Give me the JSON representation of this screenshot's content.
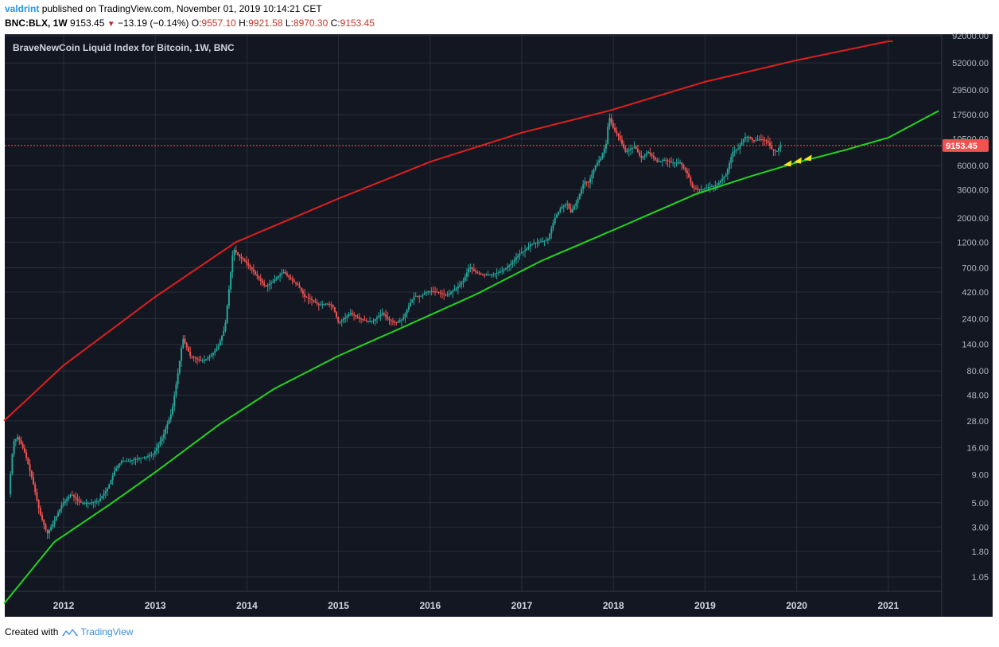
{
  "header": {
    "user": "valdrint",
    "published_text": "published on TradingView.com, November 01, 2019 10:14:21 CET",
    "symbol": "BNC:BLX, 1W",
    "last_price": "9153.45",
    "change": "−13.19 (−0.14%)",
    "o_label": "O:",
    "o_value": "9557.10",
    "h_label": "H:",
    "h_value": "9921.58",
    "l_label": "L:",
    "l_value": "8970.30",
    "c_label": "C:",
    "c_value": "9153.45"
  },
  "footer": {
    "created_with": "Created with",
    "brand": "TradingView"
  },
  "colors": {
    "background": "#131722",
    "grid": "#2a2e39",
    "up_candle": "#26a69a",
    "down_candle": "#ef5350",
    "upper_band": "#e01e1e",
    "lower_band": "#22d41e",
    "price_tag": "#ef5350",
    "arrows": "#f5e51b"
  },
  "chart_data": {
    "type": "line",
    "chart_title": "BraveNewCoin Liquid Index for Bitcoin, 1W, BNC",
    "y_scale": "log",
    "x_ticks": [
      "2012",
      "2013",
      "2014",
      "2015",
      "2016",
      "2017",
      "2018",
      "2019",
      "2020",
      "2021"
    ],
    "y_ticks": [
      {
        "label": "92000.00",
        "value": 92000
      },
      {
        "label": "52000.00",
        "value": 52000
      },
      {
        "label": "29500.00",
        "value": 29500
      },
      {
        "label": "17500.00",
        "value": 17500
      },
      {
        "label": "10500.00",
        "value": 10500
      },
      {
        "label": "6000.00",
        "value": 6000
      },
      {
        "label": "3600.00",
        "value": 3600
      },
      {
        "label": "2000.00",
        "value": 2000
      },
      {
        "label": "1200.00",
        "value": 1200
      },
      {
        "label": "700.00",
        "value": 700
      },
      {
        "label": "420.00",
        "value": 420
      },
      {
        "label": "240.00",
        "value": 240
      },
      {
        "label": "140.00",
        "value": 140
      },
      {
        "label": "80.00",
        "value": 80
      },
      {
        "label": "48.00",
        "value": 48
      },
      {
        "label": "28.00",
        "value": 28
      },
      {
        "label": "16.00",
        "value": 16
      },
      {
        "label": "9.00",
        "value": 9
      },
      {
        "label": "5.00",
        "value": 5
      },
      {
        "label": "3.00",
        "value": 3
      },
      {
        "label": "1.80",
        "value": 1.8
      },
      {
        "label": "1.05",
        "value": 1.05
      }
    ],
    "current_price_label": "9153.45",
    "current_price": 9153.45,
    "price_series": {
      "name": "",
      "x": [
        2011.42,
        2011.47,
        2011.52,
        2011.6,
        2011.68,
        2011.76,
        2011.84,
        2011.9,
        2012.0,
        2012.1,
        2012.2,
        2012.3,
        2012.4,
        2012.5,
        2012.58,
        2012.65,
        2012.72,
        2012.8,
        2012.9,
        2013.0,
        2013.1,
        2013.2,
        2013.27,
        2013.32,
        2013.4,
        2013.5,
        2013.55,
        2013.6,
        2013.7,
        2013.78,
        2013.83,
        2013.87,
        2013.93,
        2014.0,
        2014.06,
        2014.15,
        2014.22,
        2014.3,
        2014.37,
        2014.42,
        2014.5,
        2014.58,
        2014.65,
        2014.72,
        2014.8,
        2014.88,
        2014.95,
        2015.02,
        2015.08,
        2015.15,
        2015.25,
        2015.32,
        2015.4,
        2015.5,
        2015.58,
        2015.65,
        2015.72,
        2015.8,
        2015.85,
        2015.9,
        2016.0,
        2016.1,
        2016.2,
        2016.3,
        2016.38,
        2016.45,
        2016.5,
        2016.55,
        2016.6,
        2016.7,
        2016.8,
        2016.9,
        2017.0,
        2017.05,
        2017.12,
        2017.2,
        2017.3,
        2017.38,
        2017.45,
        2017.52,
        2017.55,
        2017.62,
        2017.7,
        2017.75,
        2017.82,
        2017.88,
        2017.94,
        2017.97,
        2018.02,
        2018.08,
        2018.15,
        2018.25,
        2018.32,
        2018.4,
        2018.5,
        2018.58,
        2018.65,
        2018.75,
        2018.83,
        2018.88,
        2018.96,
        2019.05,
        2019.15,
        2019.25,
        2019.32,
        2019.38,
        2019.45,
        2019.5,
        2019.55,
        2019.62,
        2019.7,
        2019.75,
        2019.8,
        2019.84
      ],
      "values": [
        6,
        18,
        20,
        14,
        8,
        4,
        2.6,
        3.2,
        4.8,
        6,
        5,
        5,
        5.2,
        6.8,
        10,
        12,
        12,
        12.5,
        13,
        14,
        20,
        34,
        80,
        160,
        110,
        100,
        100,
        105,
        130,
        200,
        500,
        1050,
        900,
        800,
        700,
        560,
        470,
        520,
        600,
        640,
        550,
        480,
        380,
        360,
        320,
        330,
        320,
        220,
        240,
        270,
        240,
        230,
        230,
        270,
        230,
        220,
        240,
        330,
        390,
        380,
        430,
        420,
        390,
        450,
        530,
        720,
        650,
        620,
        600,
        610,
        650,
        760,
        950,
        1000,
        1150,
        1200,
        1250,
        2000,
        2500,
        2700,
        2200,
        2800,
        4300,
        4200,
        6000,
        7000,
        9500,
        17000,
        13000,
        11000,
        8000,
        9000,
        7000,
        8000,
        6500,
        6800,
        6400,
        6400,
        5000,
        3800,
        3600,
        3800,
        4000,
        5000,
        8000,
        8500,
        11000,
        11000,
        10000,
        10500,
        10000,
        8400,
        8000,
        9153
      ]
    },
    "upper_band": {
      "name": "",
      "x": [
        2011.35,
        2012.0,
        2013.0,
        2013.88,
        2015.0,
        2016.0,
        2017.0,
        2017.95,
        2019.0,
        2020.0,
        2021.0
      ],
      "values": [
        28,
        90,
        380,
        1200,
        3000,
        6500,
        12000,
        19000,
        35000,
        55000,
        82000
      ]
    },
    "lower_band": {
      "name": "",
      "x": [
        2011.35,
        2011.9,
        2012.5,
        2013.0,
        2013.7,
        2014.3,
        2015.0,
        2015.7,
        2016.5,
        2017.2,
        2018.0,
        2018.9,
        2019.5,
        2020.0,
        2020.5,
        2021.0,
        2021.55
      ],
      "values": [
        0.6,
        2.2,
        4.8,
        9.5,
        26,
        55,
        110,
        200,
        400,
        800,
        1550,
        3300,
        4800,
        6400,
        8200,
        10800,
        19000
      ]
    }
  }
}
